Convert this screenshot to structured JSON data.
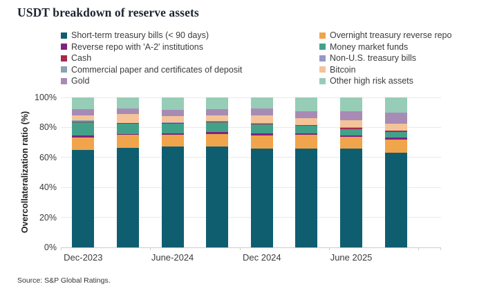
{
  "title": "USDT breakdown of reserve assets",
  "source": "Source: S&P Global Ratings.",
  "colors": {
    "grid": "#e9e9e9",
    "axis": "#cccccc",
    "text": "#3b3b3b",
    "title_text": "#1c2430"
  },
  "chart_data": {
    "type": "bar",
    "variant": "stacked-100-percent",
    "title": "USDT breakdown of reserve assets",
    "xlabel": "",
    "ylabel": "Overcollateralization ratio (%)",
    "ylim": [
      0,
      100
    ],
    "ytick_labels": [
      "0%",
      "20%",
      "40%",
      "60%",
      "80%",
      "100%"
    ],
    "grid": "horizontal",
    "legend_position": "top, two columns",
    "categories": [
      "Dec-2023",
      "",
      "June-2024",
      "",
      "Dec 2024",
      "",
      "June 2025",
      ""
    ],
    "series": [
      {
        "name": "Short-term treasury bills (< 90 days)",
        "color": "#0e5e70",
        "values": [
          65.0,
          66.3,
          67.2,
          67.2,
          65.7,
          65.7,
          66.0,
          63.0
        ]
      },
      {
        "name": "Overnight treasury reverse repo",
        "color": "#f0a44c",
        "values": [
          8.5,
          8.9,
          8.0,
          8.3,
          8.8,
          9.2,
          7.7,
          8.9
        ]
      },
      {
        "name": "Reverse repo with 'A-2' institutions",
        "color": "#7b2482",
        "values": [
          1.0,
          0.6,
          1.0,
          1.5,
          1.6,
          1.2,
          1.0,
          1.3
        ]
      },
      {
        "name": "Money market funds",
        "color": "#43a189",
        "values": [
          8.7,
          6.7,
          6.1,
          6.2,
          5.8,
          4.9,
          4.3,
          4.0
        ]
      },
      {
        "name": "Cash",
        "color": "#a52a4d",
        "values": [
          0.9,
          0.5,
          0.9,
          0.8,
          0.8,
          0.5,
          0.8,
          0.6
        ]
      },
      {
        "name": "Non-U.S. treasury bills",
        "color": "#9598c7",
        "values": [
          0.3,
          0.1,
          0.2,
          0.1,
          0.1,
          0.1,
          0.1,
          0.1
        ]
      },
      {
        "name": "Commercial paper and certificates of deposit",
        "color": "#8aa3b4",
        "values": [
          0.3,
          0.1,
          0.2,
          0.1,
          0.1,
          0.1,
          0.1,
          0.1
        ]
      },
      {
        "name": "Bitcoin",
        "color": "#f5c398",
        "values": [
          3.4,
          5.6,
          4.0,
          3.7,
          5.3,
          4.3,
          5.0,
          4.6
        ]
      },
      {
        "name": "Gold",
        "color": "#a78bb5",
        "values": [
          4.0,
          3.8,
          4.2,
          4.3,
          4.3,
          4.9,
          5.6,
          7.2
        ]
      },
      {
        "name": "Other high risk assets",
        "color": "#97ccb6",
        "values": [
          7.9,
          7.4,
          8.2,
          7.8,
          7.5,
          9.1,
          9.4,
          10.2
        ]
      }
    ]
  }
}
